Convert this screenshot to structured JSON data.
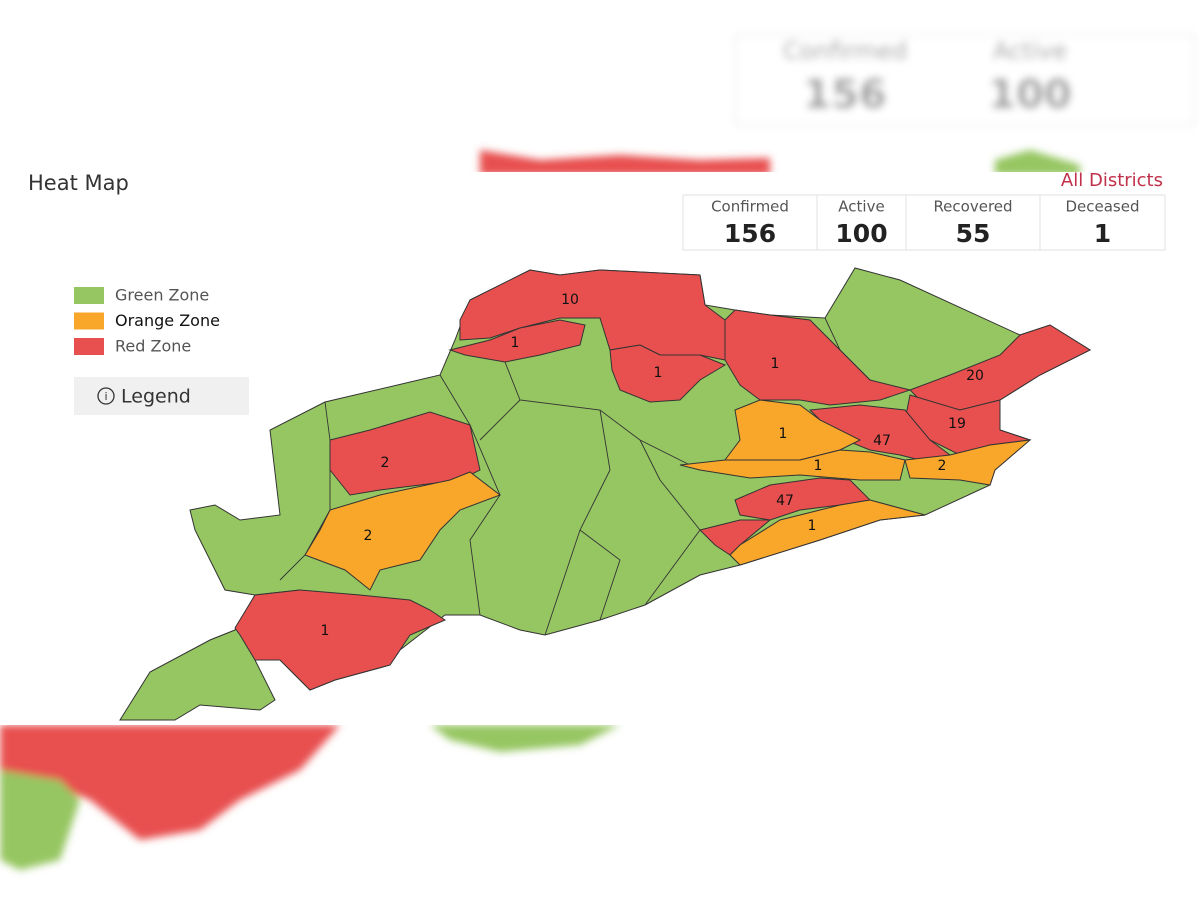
{
  "title": "Heat Map",
  "link": "All Districts",
  "stats": [
    {
      "label": "Confirmed",
      "value": 156
    },
    {
      "label": "Active",
      "value": 100
    },
    {
      "label": "Recovered",
      "value": 55
    },
    {
      "label": "Deceased",
      "value": 1
    }
  ],
  "legend": {
    "items": [
      {
        "label": "Green Zone",
        "zone": "green",
        "color": "#96c662"
      },
      {
        "label": "Orange Zone",
        "zone": "orange",
        "color": "#f9a72b"
      },
      {
        "label": "Red Zone",
        "zone": "red",
        "color": "#e8504f"
      }
    ],
    "button": "Legend"
  },
  "districts": [
    {
      "value": 10,
      "zone": "red"
    },
    {
      "value": 1,
      "zone": "red"
    },
    {
      "value": 1,
      "zone": "red"
    },
    {
      "value": 1,
      "zone": "red"
    },
    {
      "value": 20,
      "zone": "red"
    },
    {
      "value": 19,
      "zone": "red"
    },
    {
      "value": 47,
      "zone": "red"
    },
    {
      "value": 1,
      "zone": "orange"
    },
    {
      "value": 1,
      "zone": "orange"
    },
    {
      "value": 2,
      "zone": "orange"
    },
    {
      "value": 47,
      "zone": "red"
    },
    {
      "value": 1,
      "zone": "orange"
    },
    {
      "value": 2,
      "zone": "red"
    },
    {
      "value": 2,
      "zone": "orange"
    },
    {
      "value": 1,
      "zone": "red"
    }
  ],
  "backdrop": {
    "stats": [
      {
        "label": "Confirmed",
        "value": 156
      },
      {
        "label": "Active",
        "value": 100
      }
    ]
  }
}
